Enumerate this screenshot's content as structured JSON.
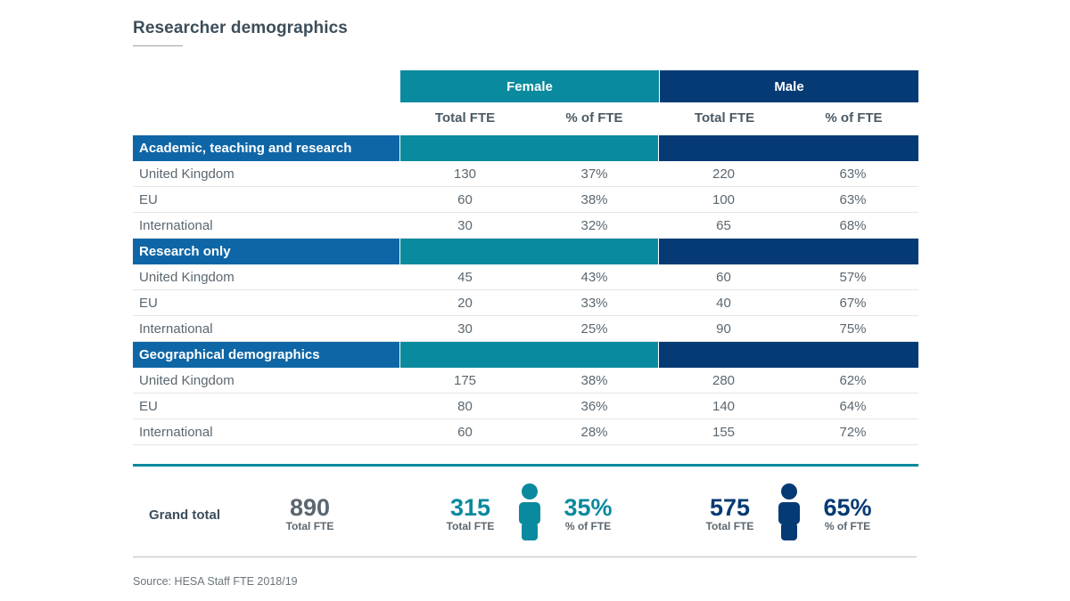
{
  "title": "Researcher demographics",
  "colors": {
    "female": "#0a8a9e",
    "male": "#053a74",
    "section": "#0f66a6",
    "grand_total": "#5b6770"
  },
  "header": {
    "female": "Female",
    "male": "Male",
    "female_total": "Total FTE",
    "female_pct": "% of FTE",
    "male_total": "Total FTE",
    "male_pct": "% of FTE"
  },
  "sections": [
    {
      "label": "Academic, teaching and research",
      "rows": [
        {
          "label": "United Kingdom",
          "f_total": "130",
          "f_pct": "37%",
          "m_total": "220",
          "m_pct": "63%"
        },
        {
          "label": "EU",
          "f_total": "60",
          "f_pct": "38%",
          "m_total": "100",
          "m_pct": "63%"
        },
        {
          "label": "International",
          "f_total": "30",
          "f_pct": "32%",
          "m_total": "65",
          "m_pct": "68%"
        }
      ]
    },
    {
      "label": "Research only",
      "rows": [
        {
          "label": "United Kingdom",
          "f_total": "45",
          "f_pct": "43%",
          "m_total": "60",
          "m_pct": "57%"
        },
        {
          "label": "EU",
          "f_total": "20",
          "f_pct": "33%",
          "m_total": "40",
          "m_pct": "67%"
        },
        {
          "label": "International",
          "f_total": "30",
          "f_pct": "25%",
          "m_total": "90",
          "m_pct": "75%"
        }
      ]
    },
    {
      "label": "Geographical demographics",
      "rows": [
        {
          "label": "United Kingdom",
          "f_total": "175",
          "f_pct": "38%",
          "m_total": "280",
          "m_pct": "62%"
        },
        {
          "label": "EU",
          "f_total": "80",
          "f_pct": "36%",
          "m_total": "140",
          "m_pct": "64%"
        },
        {
          "label": "International",
          "f_total": "60",
          "f_pct": "28%",
          "m_total": "155",
          "m_pct": "72%"
        }
      ]
    }
  ],
  "grand_total": {
    "label": "Grand total",
    "total": "890",
    "total_label": "Total FTE",
    "female_total": "315",
    "female_total_label": "Total FTE",
    "female_pct": "35%",
    "female_pct_label": "% of FTE",
    "male_total": "575",
    "male_total_label": "Total FTE",
    "male_pct": "65%",
    "male_pct_label": "% of FTE",
    "icons": {
      "female": "person-icon",
      "male": "person-icon"
    }
  },
  "source": "Source: HESA Staff FTE 2018/19"
}
